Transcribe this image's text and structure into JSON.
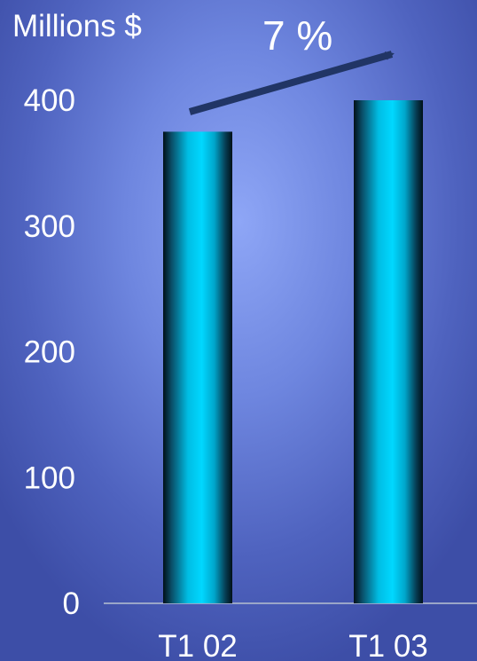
{
  "chart_data": {
    "type": "bar",
    "ylabel": "Millions $",
    "categories": [
      "T1 02",
      "T1 03"
    ],
    "values": [
      375,
      400
    ],
    "ylim": [
      0,
      400
    ],
    "yticks": [
      0,
      100,
      200,
      300,
      400
    ],
    "grid": false,
    "annotation": {
      "text": "7 %"
    },
    "colors": {
      "bar_center": "#00d8ff",
      "bar_edge": "#001018",
      "axis": "#9aa6c8"
    }
  }
}
